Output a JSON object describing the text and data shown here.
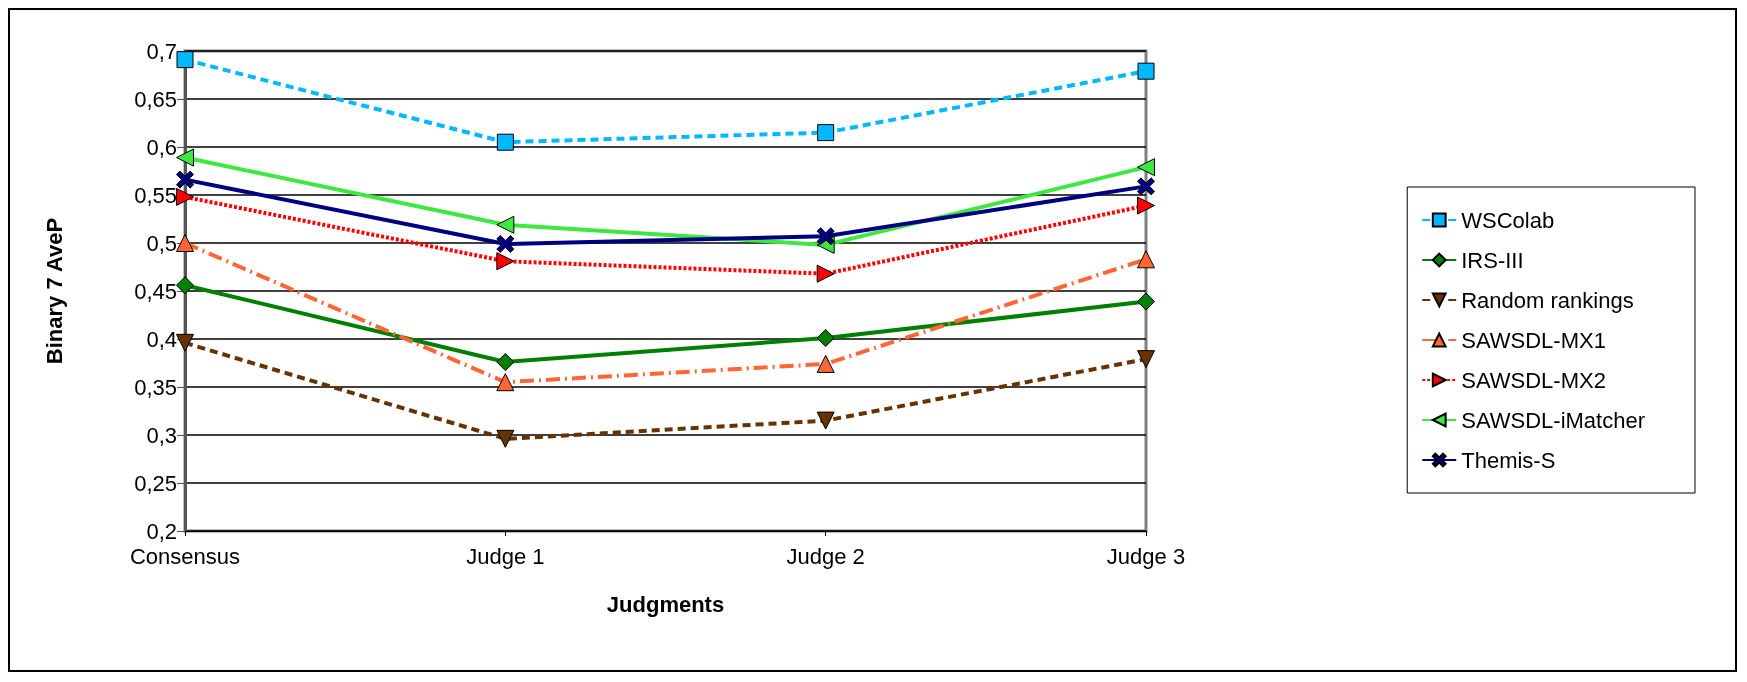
{
  "chart_data": {
    "type": "line",
    "xlabel": "Judgments",
    "ylabel": "Binary 7 AveP",
    "categories": [
      "Consensus",
      "Judge 1",
      "Judge 2",
      "Judge 3"
    ],
    "series": [
      {
        "name": "WSColab",
        "color": "#00b8ff",
        "values": [
          0.691,
          0.605,
          0.615,
          0.679
        ],
        "marker": "square",
        "line_style": "dashed"
      },
      {
        "name": "IRS-III",
        "color": "#008000",
        "values": [
          0.456,
          0.376,
          0.401,
          0.439
        ],
        "marker": "diamond",
        "line_style": "solid"
      },
      {
        "name": "Random rankings",
        "color": "#663300",
        "values": [
          0.396,
          0.296,
          0.315,
          0.379
        ],
        "marker": "triangle-down",
        "line_style": "dashed"
      },
      {
        "name": "SAWSDL-MX1",
        "color": "#ff6633",
        "values": [
          0.5,
          0.355,
          0.374,
          0.483
        ],
        "marker": "triangle",
        "line_style": "dashdot"
      },
      {
        "name": "SAWSDL-MX2",
        "color": "#ff0000",
        "values": [
          0.548,
          0.481,
          0.468,
          0.539
        ],
        "marker": "triangle-right",
        "line_style": "dotted"
      },
      {
        "name": "SAWSDL-iMatcher",
        "color": "#3ee83e",
        "values": [
          0.589,
          0.519,
          0.498,
          0.579
        ],
        "marker": "triangle-left",
        "line_style": "solid"
      },
      {
        "name": "Themis-S",
        "color": "#000080",
        "values": [
          0.566,
          0.499,
          0.507,
          0.559
        ],
        "marker": "cross",
        "line_style": "solid"
      }
    ],
    "ylim": [
      0.2,
      0.7
    ],
    "yticks": [
      {
        "value": 0.2,
        "label": "0,2"
      },
      {
        "value": 0.25,
        "label": "0,25"
      },
      {
        "value": 0.3,
        "label": "0,3"
      },
      {
        "value": 0.35,
        "label": "0,35"
      },
      {
        "value": 0.4,
        "label": "0,4"
      },
      {
        "value": 0.45,
        "label": "0,45"
      },
      {
        "value": 0.5,
        "label": "0,5"
      },
      {
        "value": 0.55,
        "label": "0,55"
      },
      {
        "value": 0.6,
        "label": "0,6"
      },
      {
        "value": 0.65,
        "label": "0,65"
      },
      {
        "value": 0.7,
        "label": "0,7"
      }
    ],
    "grid": "y",
    "legend": "right"
  }
}
